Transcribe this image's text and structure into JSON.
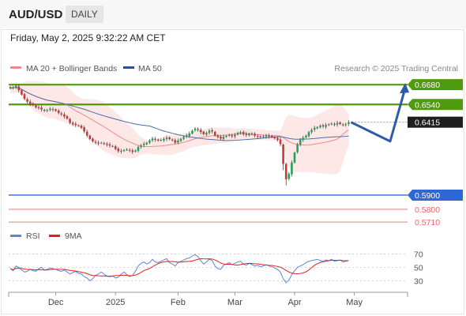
{
  "header": {
    "pair": "AUD/USD",
    "timeframe": "DAILY",
    "datetime": "Friday, May 2, 2025 9:32:22 AM CET"
  },
  "legend": {
    "ma20": "MA 20 + Bollinger Bands",
    "ma50": "MA 50",
    "credit": "Research © 2025 Trading Central",
    "rsi": "RSI",
    "rsi_ma": "9MA"
  },
  "colors": {
    "up": "#22a35a",
    "down": "#c43a3a",
    "ma20": "#f08a8a",
    "ma50": "#4a6ea8",
    "bands": "#fde3e3",
    "green_level": "#4f9a0e",
    "blue_level": "#2e67d6",
    "red_level": "#e06a6a",
    "current": "#1f1f1f",
    "arrow": "#2f5aa8",
    "rsi": "#5c86d6",
    "rsi_ma": "#e02020"
  },
  "chart_data": {
    "type": "candlestick",
    "price_ylim": [
      0.566,
      0.672
    ],
    "levels": [
      {
        "value": 0.668,
        "label": "0.6680",
        "kind": "resistance",
        "color": "#4f9a0e"
      },
      {
        "value": 0.654,
        "label": "0.6540",
        "kind": "resistance",
        "color": "#4f9a0e"
      },
      {
        "value": 0.6415,
        "label": "0.6415",
        "kind": "current",
        "color": "#1f1f1f"
      },
      {
        "value": 0.59,
        "label": "0.5900",
        "kind": "pivot",
        "color": "#2e67d6"
      },
      {
        "value": 0.58,
        "label": "0.5800",
        "kind": "support",
        "color": "#e06a6a"
      },
      {
        "value": 0.571,
        "label": "0.5710",
        "kind": "support",
        "color": "#e06a6a"
      }
    ],
    "x_ticks": [
      "Dec",
      "2025",
      "Feb",
      "Mar",
      "Apr",
      "May"
    ],
    "x_tick_index": [
      16,
      37,
      59,
      79,
      100,
      121
    ],
    "closes": [
      0.6655,
      0.666,
      0.667,
      0.664,
      0.661,
      0.658,
      0.656,
      0.6545,
      0.6535,
      0.652,
      0.6515,
      0.6505,
      0.6495,
      0.65,
      0.651,
      0.6505,
      0.6495,
      0.648,
      0.647,
      0.6455,
      0.644,
      0.641,
      0.64,
      0.6395,
      0.639,
      0.6375,
      0.635,
      0.632,
      0.6295,
      0.628,
      0.627,
      0.6265,
      0.627,
      0.6262,
      0.6255,
      0.625,
      0.6245,
      0.6225,
      0.621,
      0.6212,
      0.6218,
      0.6222,
      0.6215,
      0.6205,
      0.6215,
      0.624,
      0.625,
      0.6262,
      0.627,
      0.6285,
      0.63,
      0.6292,
      0.6285,
      0.629,
      0.6296,
      0.6305,
      0.6295,
      0.6288,
      0.627,
      0.6285,
      0.6298,
      0.631,
      0.6322,
      0.6335,
      0.6355,
      0.637,
      0.636,
      0.6345,
      0.633,
      0.634,
      0.6355,
      0.635,
      0.632,
      0.631,
      0.63,
      0.6312,
      0.6318,
      0.6325,
      0.6315,
      0.6325,
      0.634,
      0.6345,
      0.633,
      0.6325,
      0.6335,
      0.633,
      0.632,
      0.6315,
      0.631,
      0.6315,
      0.632,
      0.6315,
      0.631,
      0.6302,
      0.629,
      0.626,
      0.612,
      0.6012,
      0.605,
      0.613,
      0.62,
      0.626,
      0.629,
      0.6305,
      0.632,
      0.6345,
      0.636,
      0.6375,
      0.638,
      0.639,
      0.6385,
      0.6395,
      0.64,
      0.6405,
      0.6398,
      0.641,
      0.6402,
      0.6395,
      0.64,
      0.6415
    ],
    "forecast": [
      0.6415,
      0.628,
      0.668
    ],
    "rsi_ylim": [
      15,
      80
    ],
    "rsi_ticks": [
      70,
      50,
      30
    ],
    "rsi": [
      48,
      45,
      52,
      50,
      46,
      43,
      44,
      47,
      45,
      44,
      48,
      50,
      46,
      47,
      49,
      48,
      47,
      45,
      44,
      46,
      43,
      40,
      42,
      44,
      41,
      40,
      36,
      34,
      30,
      33,
      38,
      40,
      43,
      40,
      37,
      36,
      37,
      34,
      35,
      40,
      43,
      39,
      36,
      38,
      44,
      52,
      56,
      58,
      55,
      57,
      62,
      58,
      57,
      59,
      61,
      63,
      57,
      55,
      52,
      57,
      59,
      61,
      63,
      64,
      67,
      69,
      66,
      60,
      55,
      58,
      62,
      60,
      52,
      48,
      47,
      53,
      55,
      57,
      54,
      56,
      58,
      59,
      55,
      53,
      56,
      54,
      52,
      53,
      51,
      52,
      54,
      52,
      51,
      49,
      47,
      43,
      33,
      27,
      31,
      39,
      45,
      50,
      52,
      54,
      57,
      59,
      60,
      61,
      62,
      60,
      59,
      61,
      60,
      62,
      59,
      60,
      61,
      58,
      59,
      60
    ]
  }
}
